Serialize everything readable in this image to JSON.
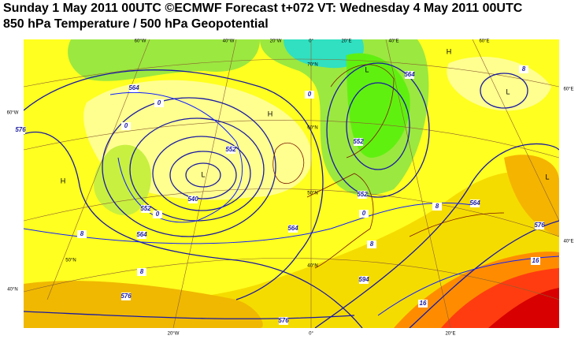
{
  "header": {
    "title": "Sunday 1 May 2011 00UTC ©ECMWF Forecast t+072 VT: Wednesday 4 May 2011 00UTC",
    "subtitle": "850 hPa Temperature / 500 hPa Geopotential"
  },
  "graticule_labels": [
    "60°W",
    "40°W",
    "20°W",
    "0°",
    "20°E",
    "40°E",
    "60°E",
    "60°W",
    "40°N",
    "60°E",
    "40°E",
    "20°W",
    "0°",
    "20°E",
    "70°N",
    "60°N",
    "50°N",
    "40°N",
    "50°N"
  ],
  "contour_labels": [
    "564",
    "0",
    "576",
    "0",
    "552",
    "540",
    "552",
    "0",
    "564",
    "8",
    "8",
    "576",
    "576",
    "564",
    "594",
    "8",
    "0",
    "552",
    "8",
    "564",
    "576",
    "16",
    "16",
    "8",
    "564",
    "552",
    "0"
  ],
  "pressure_centers": [
    "H",
    "L",
    "H",
    "L",
    "H",
    "L",
    "L"
  ]
}
